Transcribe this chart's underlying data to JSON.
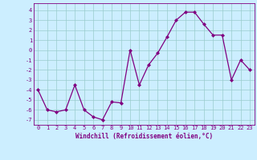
{
  "x": [
    0,
    1,
    2,
    3,
    4,
    5,
    6,
    7,
    8,
    9,
    10,
    11,
    12,
    13,
    14,
    15,
    16,
    17,
    18,
    19,
    20,
    21,
    22,
    23
  ],
  "y": [
    -4,
    -6,
    -6.2,
    -6,
    -3.5,
    -6,
    -6.7,
    -7,
    -5.2,
    -5.3,
    0,
    -3.5,
    -1.5,
    -0.3,
    1.3,
    3.0,
    3.8,
    3.8,
    2.6,
    1.5,
    1.5,
    -3,
    -1,
    -2
  ],
  "line_color": "#800080",
  "marker": "D",
  "marker_size": 2,
  "bg_color": "#cceeff",
  "grid_color": "#99cccc",
  "xlabel": "Windchill (Refroidissement éolien,°C)",
  "xlabel_color": "#800080",
  "yticks": [
    -7,
    -6,
    -5,
    -4,
    -3,
    -2,
    -1,
    0,
    1,
    2,
    3,
    4
  ],
  "xticks": [
    0,
    1,
    2,
    3,
    4,
    5,
    6,
    7,
    8,
    9,
    10,
    11,
    12,
    13,
    14,
    15,
    16,
    17,
    18,
    19,
    20,
    21,
    22,
    23
  ],
  "ylim": [
    -7.5,
    4.7
  ],
  "xlim": [
    -0.5,
    23.5
  ],
  "axis_color": "#800080",
  "tick_color": "#800080",
  "tick_fontsize": 5,
  "xlabel_fontsize": 5.5,
  "linewidth": 0.9
}
